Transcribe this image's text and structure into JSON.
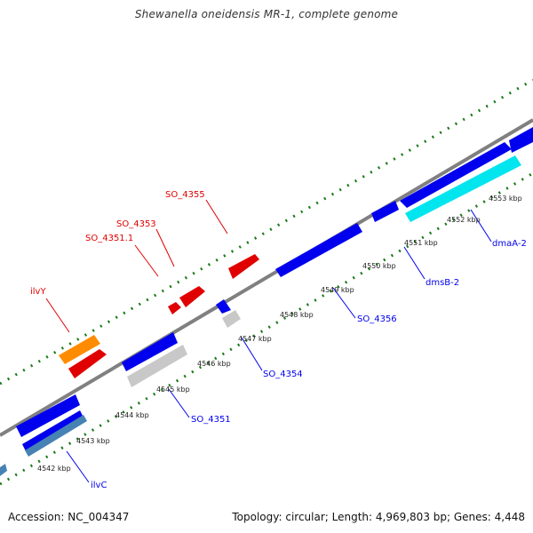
{
  "title": "Shewanella oneidensis MR-1, complete genome",
  "footer": {
    "accession": "Accession: NC_004347",
    "topology": "Topology: circular; Length: 4,969,803 bp; Genes: 4,448"
  },
  "colors": {
    "backbone": "#808080",
    "forward_gene": "#e00000",
    "reverse_gene": "#0000ee",
    "orange_gene": "#ff8c00",
    "gray_gene": "#c8c8c8",
    "cyan_gene": "#00e5ee",
    "steel_gene": "#4682b4",
    "tick_green": "#1a7a1a"
  },
  "kbp_labels": [
    "4542 kbp",
    "4543 kbp",
    "4544 kbp",
    "4545 kbp",
    "4546 kbp",
    "4547 kbp",
    "4548 kbp",
    "4549 kbp",
    "4550 kbp",
    "4551 kbp",
    "4552 kbp",
    "4553 kbp"
  ],
  "gene_labels": {
    "so_4355": "SO_4355",
    "so_4353": "SO_4353",
    "so_4351_1": "SO_4351.1",
    "ilvy": "ilvY",
    "so_4356": "SO_4356",
    "so_4354": "SO_4354",
    "so_4351": "SO_4351",
    "ilvc": "ilvC",
    "dmsb_2": "dmsB-2",
    "dmaa_2": "dmaA-2"
  }
}
